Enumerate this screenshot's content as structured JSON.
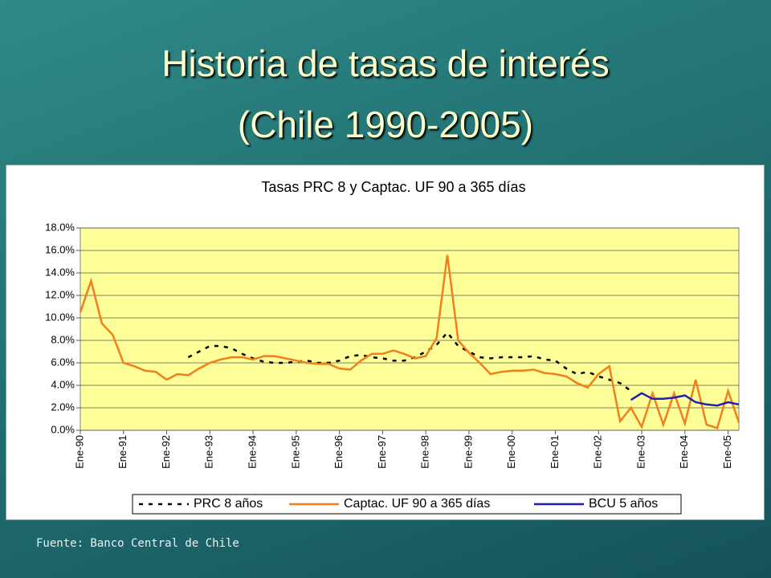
{
  "slide_title": [
    "Historia de tasas de interés",
    "(Chile 1990-2005)"
  ],
  "source": "Fuente: Banco Central de Chile",
  "chart_data": {
    "type": "line",
    "title": "Tasas PRC 8 y Captac. UF 90 a 365 días",
    "categories": [
      "Ene-90",
      null,
      null,
      null,
      "Ene-91",
      null,
      null,
      null,
      "Ene-92",
      null,
      null,
      null,
      "Ene-93",
      null,
      null,
      null,
      "Ene-94",
      null,
      null,
      null,
      "Ene-95",
      null,
      null,
      null,
      "Ene-96",
      null,
      null,
      null,
      "Ene-97",
      null,
      null,
      null,
      "Ene-98",
      null,
      null,
      null,
      "Ene-99",
      null,
      null,
      null,
      "Ene-00",
      null,
      null,
      null,
      "Ene-01",
      null,
      null,
      null,
      "Ene-02",
      null,
      null,
      null,
      "Ene-03",
      null,
      null,
      null,
      "Ene-04",
      null,
      null,
      null,
      "Ene-05",
      null
    ],
    "series": [
      {
        "name": "PRC 8 años",
        "color": "#000000",
        "dashed": true,
        "values": [
          null,
          null,
          null,
          null,
          null,
          null,
          null,
          null,
          null,
          null,
          6.5,
          7.0,
          7.5,
          7.5,
          7.3,
          6.8,
          6.4,
          6.1,
          6.0,
          6.0,
          6.1,
          6.2,
          6.0,
          6.0,
          6.2,
          6.6,
          6.7,
          6.5,
          6.4,
          6.2,
          6.2,
          6.5,
          7.0,
          7.6,
          8.7,
          7.5,
          7.0,
          6.5,
          6.4,
          6.5,
          6.5,
          6.5,
          6.6,
          6.3,
          6.2,
          5.5,
          5.0,
          5.2,
          4.8,
          4.5,
          4.2,
          3.5,
          null,
          null,
          null,
          null,
          null,
          null,
          null,
          null,
          null,
          null
        ]
      },
      {
        "name": "Captac. UF 90 a 365 días",
        "color": "#f07f1c",
        "dashed": false,
        "values": [
          10.5,
          13.3,
          9.5,
          8.5,
          6.0,
          5.7,
          5.3,
          5.2,
          4.5,
          5.0,
          4.9,
          5.5,
          6.0,
          6.3,
          6.5,
          6.5,
          6.3,
          6.6,
          6.6,
          6.4,
          6.2,
          6.0,
          5.9,
          5.9,
          5.5,
          5.4,
          6.2,
          6.8,
          6.8,
          7.1,
          6.8,
          6.4,
          6.6,
          8.2,
          15.6,
          8.0,
          6.9,
          6.0,
          5.0,
          5.2,
          5.3,
          5.3,
          5.4,
          5.1,
          5.0,
          4.8,
          4.2,
          3.8,
          5.0,
          5.7,
          0.8,
          2.0,
          0.3,
          3.3,
          0.5,
          3.3,
          0.6,
          4.5,
          0.5,
          0.2,
          3.5,
          0.7
        ]
      },
      {
        "name": "BCU 5 años",
        "color": "#1f1fb4",
        "dashed": false,
        "values": [
          null,
          null,
          null,
          null,
          null,
          null,
          null,
          null,
          null,
          null,
          null,
          null,
          null,
          null,
          null,
          null,
          null,
          null,
          null,
          null,
          null,
          null,
          null,
          null,
          null,
          null,
          null,
          null,
          null,
          null,
          null,
          null,
          null,
          null,
          null,
          null,
          null,
          null,
          null,
          null,
          null,
          null,
          null,
          null,
          null,
          null,
          null,
          null,
          null,
          null,
          null,
          2.7,
          3.3,
          2.8,
          2.8,
          2.9,
          3.1,
          2.5,
          2.3,
          2.2,
          2.5,
          2.3
        ]
      }
    ],
    "ylim": [
      0,
      18
    ],
    "yticks": [
      {
        "value": 0,
        "label": "0.0%"
      },
      {
        "value": 2,
        "label": "2.0%"
      },
      {
        "value": 4,
        "label": "4.0%"
      },
      {
        "value": 6,
        "label": "6.0%"
      },
      {
        "value": 8,
        "label": "8.0%"
      },
      {
        "value": 10,
        "label": "10.0%"
      },
      {
        "value": 12,
        "label": "12.0%"
      },
      {
        "value": 14,
        "label": "14.0%"
      },
      {
        "value": 16,
        "label": "16.0%"
      },
      {
        "value": 18,
        "label": "18.0%"
      }
    ],
    "grid": true,
    "plot_color": "#ffff99",
    "legend": "bottom"
  }
}
